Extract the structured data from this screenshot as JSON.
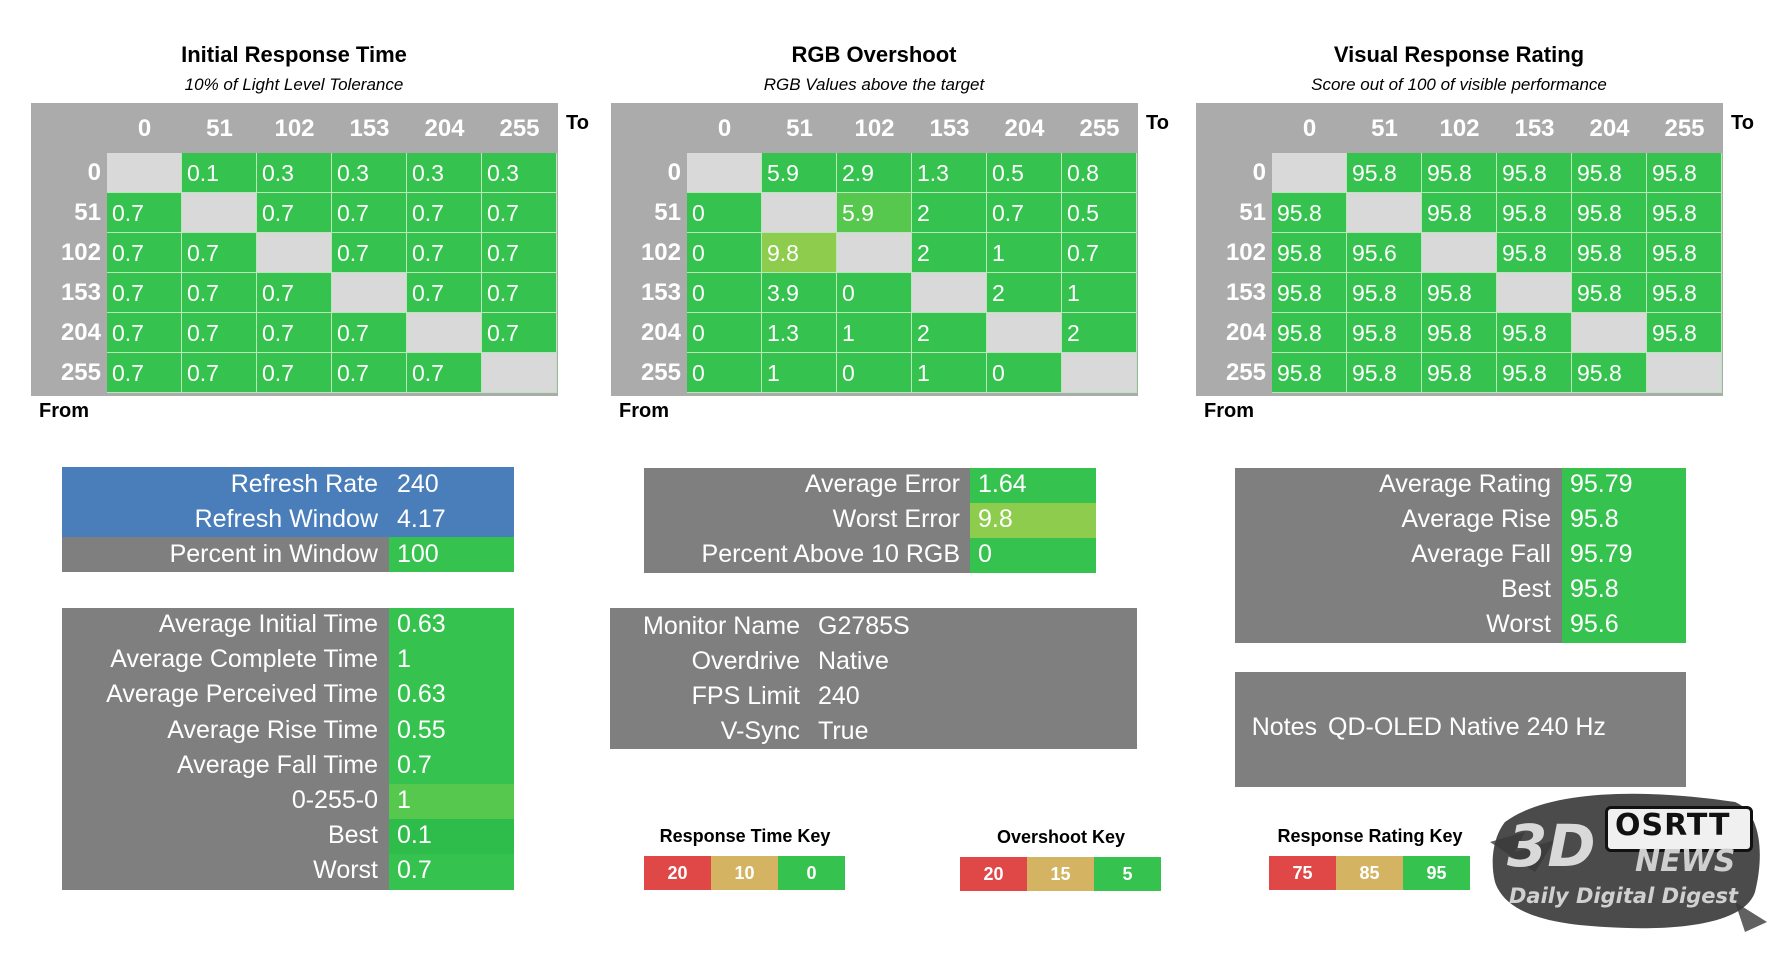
{
  "colors": {
    "green": "#35c24e",
    "light_green": "#8dcc4c",
    "mid_green": "#56c84e",
    "diag": "#d9d9d9",
    "header_gray": "#ababab",
    "box_gray": "#7f7f7f",
    "refresh_blue": "#4a7ebb",
    "key_red": "#e04848",
    "key_yellow": "#d4b463",
    "key_green": "#35c24e"
  },
  "chart_data": [
    {
      "type": "heatmap",
      "title": "Initial Response Time",
      "subtitle": "10% of Light Level Tolerance",
      "xlabel": "To",
      "ylabel": "From",
      "columns": [
        "0",
        "51",
        "102",
        "153",
        "204",
        "255"
      ],
      "rows": [
        "0",
        "51",
        "102",
        "153",
        "204",
        "255"
      ],
      "values": [
        [
          "",
          "0.1",
          "0.3",
          "0.3",
          "0.3",
          "0.3"
        ],
        [
          "0.7",
          "",
          "0.7",
          "0.7",
          "0.7",
          "0.7"
        ],
        [
          "0.7",
          "0.7",
          "",
          "0.7",
          "0.7",
          "0.7"
        ],
        [
          "0.7",
          "0.7",
          "0.7",
          "",
          "0.7",
          "0.7"
        ],
        [
          "0.7",
          "0.7",
          "0.7",
          "0.7",
          "",
          "0.7"
        ],
        [
          "0.7",
          "0.7",
          "0.7",
          "0.7",
          "0.7",
          ""
        ]
      ]
    },
    {
      "type": "heatmap",
      "title": "RGB Overshoot",
      "subtitle": "RGB Values above the target",
      "xlabel": "To",
      "ylabel": "From",
      "columns": [
        "0",
        "51",
        "102",
        "153",
        "204",
        "255"
      ],
      "rows": [
        "0",
        "51",
        "102",
        "153",
        "204",
        "255"
      ],
      "values": [
        [
          "",
          "5.9",
          "2.9",
          "1.3",
          "0.5",
          "0.8"
        ],
        [
          "0",
          "",
          "5.9",
          "2",
          "0.7",
          "0.5"
        ],
        [
          "0",
          "9.8",
          "",
          "2",
          "1",
          "0.7"
        ],
        [
          "0",
          "3.9",
          "0",
          "",
          "2",
          "1"
        ],
        [
          "0",
          "1.3",
          "1",
          "2",
          "",
          "2"
        ],
        [
          "0",
          "1",
          "0",
          "1",
          "0",
          ""
        ]
      ]
    },
    {
      "type": "heatmap",
      "title": "Visual Response Rating",
      "subtitle": "Score out of 100 of visible performance",
      "xlabel": "To",
      "ylabel": "From",
      "columns": [
        "0",
        "51",
        "102",
        "153",
        "204",
        "255"
      ],
      "rows": [
        "0",
        "51",
        "102",
        "153",
        "204",
        "255"
      ],
      "values": [
        [
          "",
          "95.8",
          "95.8",
          "95.8",
          "95.8",
          "95.8"
        ],
        [
          "95.8",
          "",
          "95.8",
          "95.8",
          "95.8",
          "95.8"
        ],
        [
          "95.8",
          "95.6",
          "",
          "95.8",
          "95.8",
          "95.8"
        ],
        [
          "95.8",
          "95.8",
          "95.8",
          "",
          "95.8",
          "95.8"
        ],
        [
          "95.8",
          "95.8",
          "95.8",
          "95.8",
          "",
          "95.8"
        ],
        [
          "95.8",
          "95.8",
          "95.8",
          "95.8",
          "95.8",
          ""
        ]
      ]
    }
  ],
  "refresh": {
    "rows": [
      {
        "label": "Refresh Rate",
        "value": "240"
      },
      {
        "label": "Refresh Window",
        "value": "4.17"
      },
      {
        "label": "Percent in Window",
        "value": "100"
      }
    ]
  },
  "times": {
    "rows": [
      {
        "label": "Average Initial Time",
        "value": "0.63"
      },
      {
        "label": "Average Complete Time",
        "value": "1"
      },
      {
        "label": "Average Perceived Time",
        "value": "0.63"
      },
      {
        "label": "Average Rise Time",
        "value": "0.55"
      },
      {
        "label": "Average Fall Time",
        "value": "0.7"
      },
      {
        "label": "0-255-0",
        "value": "1"
      },
      {
        "label": "Best",
        "value": "0.1"
      },
      {
        "label": "Worst",
        "value": "0.7"
      }
    ]
  },
  "errors": {
    "rows": [
      {
        "label": "Average Error",
        "value": "1.64"
      },
      {
        "label": "Worst Error",
        "value": "9.8"
      },
      {
        "label": "Percent Above 10 RGB",
        "value": "0"
      }
    ]
  },
  "monitor": {
    "rows": [
      {
        "label": "Monitor Name",
        "value": "G2785S"
      },
      {
        "label": "Overdrive",
        "value": "Native"
      },
      {
        "label": "FPS Limit",
        "value": "240"
      },
      {
        "label": "V-Sync",
        "value": "True"
      }
    ]
  },
  "ratings": {
    "rows": [
      {
        "label": "Average Rating",
        "value": "95.79"
      },
      {
        "label": "Average Rise",
        "value": "95.8"
      },
      {
        "label": "Average Fall",
        "value": "95.79"
      },
      {
        "label": "Best",
        "value": "95.8"
      },
      {
        "label": "Worst",
        "value": "95.6"
      }
    ]
  },
  "notes": {
    "label": "Notes",
    "value": "QD-OLED Native 240 Hz"
  },
  "keys": [
    {
      "title": "Response Time Key",
      "values": [
        "20",
        "10",
        "0"
      ]
    },
    {
      "title": "Overshoot Key",
      "values": [
        "20",
        "15",
        "5"
      ]
    },
    {
      "title": "Response Rating Key",
      "values": [
        "75",
        "85",
        "95"
      ]
    }
  ],
  "watermark": {
    "brand_big": "3D",
    "brand_news": "NEWS",
    "tagline": "Daily Digital Digest",
    "logo": "OSRTT"
  }
}
